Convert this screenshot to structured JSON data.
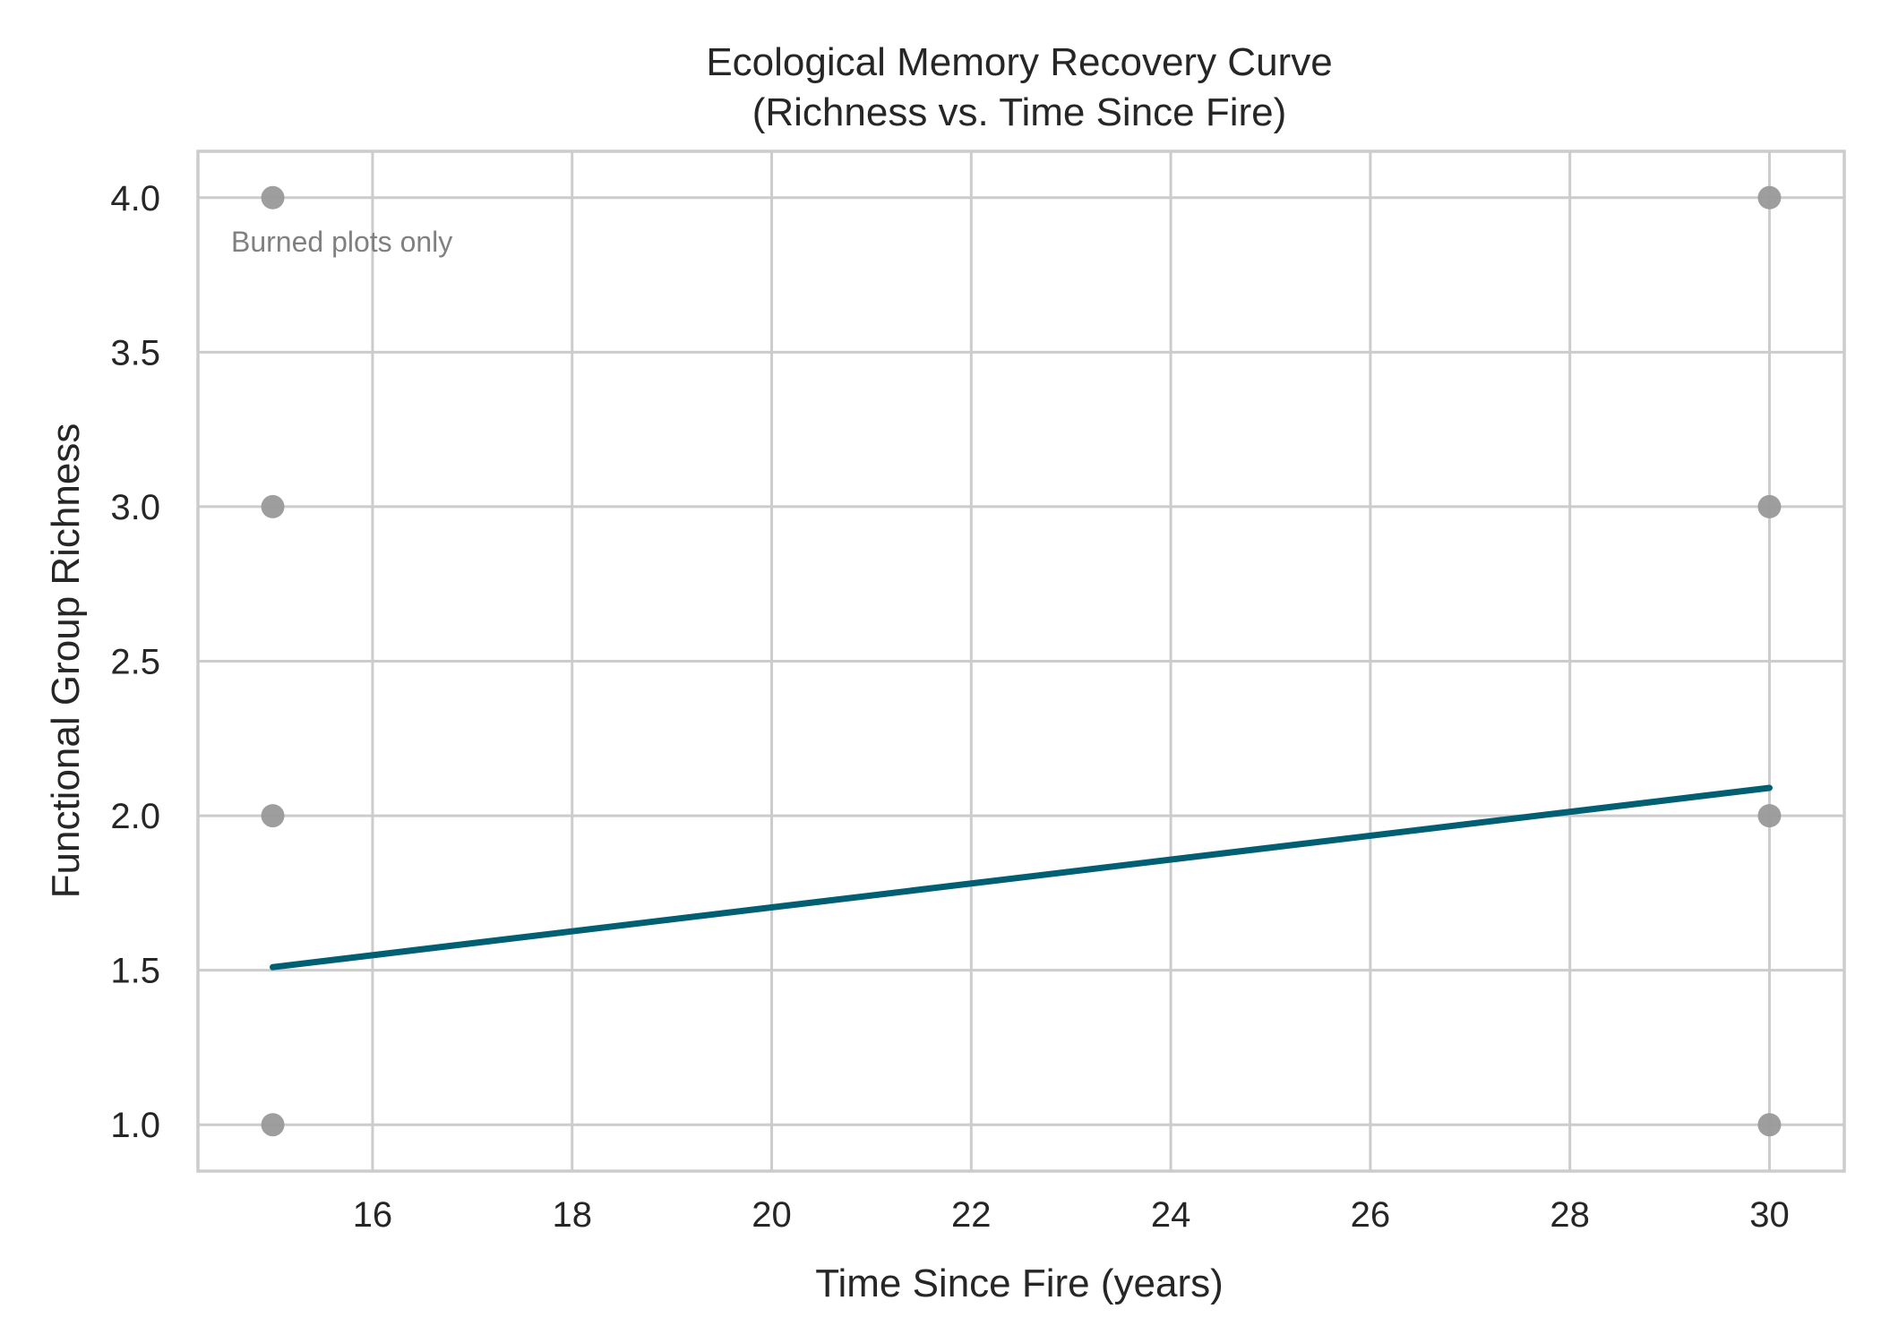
{
  "chart_data": {
    "type": "scatter",
    "title": "Ecological Memory Recovery Curve",
    "subtitle": "(Richness vs. Time Since Fire)",
    "xlabel": "Time Since Fire (years)",
    "ylabel": "Functional Group Richness",
    "xlim": [
      14.25,
      30.75
    ],
    "ylim": [
      0.85,
      4.15
    ],
    "x_ticks": [
      16,
      18,
      20,
      22,
      24,
      26,
      28,
      30
    ],
    "x_tick_labels": [
      "16",
      "18",
      "20",
      "22",
      "24",
      "26",
      "28",
      "30"
    ],
    "y_ticks": [
      1.0,
      1.5,
      2.0,
      2.5,
      3.0,
      3.5,
      4.0
    ],
    "y_tick_labels": [
      "1.0",
      "1.5",
      "2.0",
      "2.5",
      "3.0",
      "3.5",
      "4.0"
    ],
    "grid": true,
    "annotation": "Burned plots only",
    "annotation_position": "top-left",
    "series": [
      {
        "kind": "points",
        "color": "#999999",
        "points": [
          {
            "x": 15,
            "y": 4
          },
          {
            "x": 15,
            "y": 3
          },
          {
            "x": 15,
            "y": 2
          },
          {
            "x": 15,
            "y": 1
          },
          {
            "x": 30,
            "y": 4
          },
          {
            "x": 30,
            "y": 3
          },
          {
            "x": 30,
            "y": 2
          },
          {
            "x": 30,
            "y": 1
          }
        ]
      },
      {
        "kind": "fit-line",
        "color": "#005f73",
        "points": [
          {
            "x": 15,
            "y": 1.51
          },
          {
            "x": 30,
            "y": 2.09
          }
        ]
      }
    ]
  }
}
